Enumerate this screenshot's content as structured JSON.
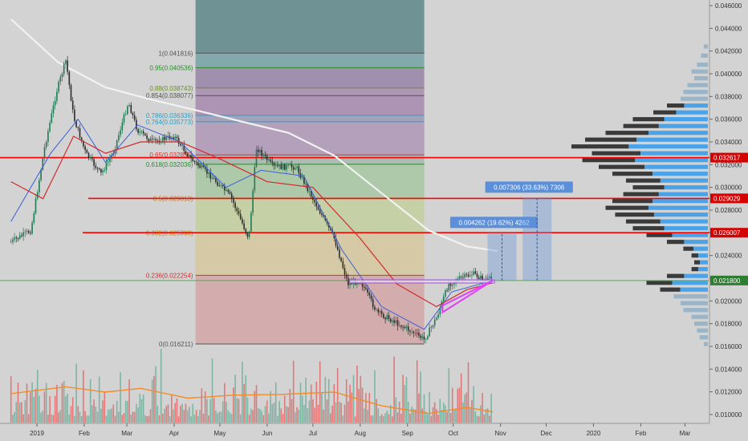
{
  "colors": {
    "background": "#d3d3d3",
    "candle_up": "#1f7a53",
    "candle_down": "#2c2c2c",
    "volume_up": "#7fb3a3",
    "volume_down": "#e07878",
    "volume_ma": "#f28c28",
    "ema_fast": "#3b5fd6",
    "ema_slow": "#d22b2b",
    "ma_long": "#f2f2f2",
    "resistance": "#ff0000",
    "current_price_line": "#4caf50",
    "price_badge": "#2e7d32",
    "red_badge": "#d50000",
    "measure_box": "#5b8fd9",
    "triangle": "#e040fb",
    "vp_value_area": "#4aa3e8",
    "vp_outside": "#3a3a3a",
    "vp_low": "#9ab4c8"
  },
  "chart_data": {
    "type": "candlestick",
    "title": "",
    "price_axis": {
      "range": [
        0.0093,
        0.047
      ],
      "ticks": [
        "0.046000",
        "0.044000",
        "0.042000",
        "0.040000",
        "0.038000",
        "0.036000",
        "0.034000",
        "0.032000",
        "0.030000",
        "0.028000",
        "0.026000",
        "0.024000",
        "0.022000",
        "0.020000",
        "0.018000",
        "0.016000",
        "0.014000",
        "0.012000",
        "0.010000"
      ]
    },
    "time_axis": {
      "labels": [
        "2019",
        "Feb",
        "Mar",
        "Apr",
        "May",
        "Jun",
        "Jul",
        "Aug",
        "Sep",
        "Oct",
        "Nov",
        "Dec",
        "2020",
        "Feb",
        "Mar"
      ]
    },
    "price_path": [
      {
        "date": "2018-12-15",
        "price": 0.0252
      },
      {
        "date": "2018-12-28",
        "price": 0.0262
      },
      {
        "date": "2019-01-06",
        "price": 0.0335
      },
      {
        "date": "2019-01-14",
        "price": 0.0385
      },
      {
        "date": "2019-01-20",
        "price": 0.0412
      },
      {
        "date": "2019-01-25",
        "price": 0.0362
      },
      {
        "date": "2019-02-02",
        "price": 0.033
      },
      {
        "date": "2019-02-12",
        "price": 0.0312
      },
      {
        "date": "2019-02-20",
        "price": 0.033
      },
      {
        "date": "2019-03-02",
        "price": 0.0375
      },
      {
        "date": "2019-03-08",
        "price": 0.035
      },
      {
        "date": "2019-03-18",
        "price": 0.034
      },
      {
        "date": "2019-04-01",
        "price": 0.0345
      },
      {
        "date": "2019-04-12",
        "price": 0.0325
      },
      {
        "date": "2019-04-25",
        "price": 0.031
      },
      {
        "date": "2019-05-08",
        "price": 0.0292
      },
      {
        "date": "2019-05-20",
        "price": 0.0255
      },
      {
        "date": "2019-05-25",
        "price": 0.0335
      },
      {
        "date": "2019-06-05",
        "price": 0.0318
      },
      {
        "date": "2019-06-20",
        "price": 0.0318
      },
      {
        "date": "2019-07-03",
        "price": 0.0285
      },
      {
        "date": "2019-07-15",
        "price": 0.0255
      },
      {
        "date": "2019-07-24",
        "price": 0.0215
      },
      {
        "date": "2019-08-01",
        "price": 0.0218
      },
      {
        "date": "2019-08-12",
        "price": 0.019
      },
      {
        "date": "2019-08-22",
        "price": 0.0183
      },
      {
        "date": "2019-09-05",
        "price": 0.0172
      },
      {
        "date": "2019-09-12",
        "price": 0.0166
      },
      {
        "date": "2019-09-20",
        "price": 0.0185
      },
      {
        "date": "2019-09-28",
        "price": 0.0215
      },
      {
        "date": "2019-10-06",
        "price": 0.022
      },
      {
        "date": "2019-10-14",
        "price": 0.0224
      },
      {
        "date": "2019-10-22",
        "price": 0.0218
      },
      {
        "date": "2019-10-27",
        "price": 0.022
      }
    ],
    "ma_long": [
      {
        "date": "2018-12-15",
        "price": 0.0448
      },
      {
        "date": "2019-01-15",
        "price": 0.041
      },
      {
        "date": "2019-02-15",
        "price": 0.0388
      },
      {
        "date": "2019-03-15",
        "price": 0.0378
      },
      {
        "date": "2019-04-15",
        "price": 0.0368
      },
      {
        "date": "2019-05-15",
        "price": 0.0358
      },
      {
        "date": "2019-06-15",
        "price": 0.0348
      },
      {
        "date": "2019-07-15",
        "price": 0.0328
      },
      {
        "date": "2019-08-15",
        "price": 0.0295
      },
      {
        "date": "2019-09-15",
        "price": 0.0262
      },
      {
        "date": "2019-10-10",
        "price": 0.0248
      },
      {
        "date": "2019-10-30",
        "price": 0.0244
      }
    ],
    "ema_slow": [
      {
        "date": "2018-12-15",
        "price": 0.0305
      },
      {
        "date": "2019-01-05",
        "price": 0.029
      },
      {
        "date": "2019-01-25",
        "price": 0.0345
      },
      {
        "date": "2019-02-15",
        "price": 0.033
      },
      {
        "date": "2019-03-10",
        "price": 0.034
      },
      {
        "date": "2019-04-05",
        "price": 0.034
      },
      {
        "date": "2019-05-01",
        "price": 0.0325
      },
      {
        "date": "2019-06-01",
        "price": 0.0305
      },
      {
        "date": "2019-07-01",
        "price": 0.03
      },
      {
        "date": "2019-08-01",
        "price": 0.0255
      },
      {
        "date": "2019-08-25",
        "price": 0.0215
      },
      {
        "date": "2019-09-20",
        "price": 0.0195
      },
      {
        "date": "2019-10-10",
        "price": 0.021
      },
      {
        "date": "2019-10-27",
        "price": 0.0216
      }
    ],
    "ema_fast": [
      {
        "date": "2018-12-15",
        "price": 0.027
      },
      {
        "date": "2019-01-10",
        "price": 0.033
      },
      {
        "date": "2019-01-28",
        "price": 0.036
      },
      {
        "date": "2019-02-15",
        "price": 0.0322
      },
      {
        "date": "2019-03-08",
        "price": 0.0355
      },
      {
        "date": "2019-04-05",
        "price": 0.034
      },
      {
        "date": "2019-05-05",
        "price": 0.03
      },
      {
        "date": "2019-05-28",
        "price": 0.0315
      },
      {
        "date": "2019-06-25",
        "price": 0.031
      },
      {
        "date": "2019-07-20",
        "price": 0.0245
      },
      {
        "date": "2019-08-15",
        "price": 0.0195
      },
      {
        "date": "2019-09-12",
        "price": 0.0175
      },
      {
        "date": "2019-09-30",
        "price": 0.0208
      },
      {
        "date": "2019-10-27",
        "price": 0.0218
      }
    ],
    "volume_ma": [
      {
        "date": "2018-12-15",
        "level": 0.38
      },
      {
        "date": "2019-01-20",
        "level": 0.47
      },
      {
        "date": "2019-02-15",
        "level": 0.4
      },
      {
        "date": "2019-03-10",
        "level": 0.45
      },
      {
        "date": "2019-04-10",
        "level": 0.32
      },
      {
        "date": "2019-05-10",
        "level": 0.36
      },
      {
        "date": "2019-06-10",
        "level": 0.37
      },
      {
        "date": "2019-07-15",
        "level": 0.4
      },
      {
        "date": "2019-08-15",
        "level": 0.22
      },
      {
        "date": "2019-09-15",
        "level": 0.12
      },
      {
        "date": "2019-10-10",
        "level": 0.2
      },
      {
        "date": "2019-10-27",
        "level": 0.14
      }
    ],
    "fibonacci": {
      "start": "2019-04-15",
      "end": "2019-09-12",
      "levels": [
        {
          "label": "1(0.041816)",
          "price": 0.041816,
          "color": "#555555"
        },
        {
          "label": "0.95(0.040536)",
          "price": 0.040536,
          "color": "#2e8b2e"
        },
        {
          "label": "0.88(0.038743)",
          "price": 0.038743,
          "color": "#6b8e23"
        },
        {
          "label": "0.854(0.038077)",
          "price": 0.038077,
          "color": "#555555"
        },
        {
          "label": "0.786(0.036336)",
          "price": 0.036336,
          "color": "#2aa0c8"
        },
        {
          "label": "0.764(0.035773)",
          "price": 0.035773,
          "color": "#2aa0c8"
        },
        {
          "label": "0.65(0.032855)",
          "price": 0.032855,
          "color": "#cc3333"
        },
        {
          "label": "0.618(0.032036)",
          "price": 0.032036,
          "color": "#2e8b2e"
        },
        {
          "label": "0.5(0.029013)",
          "price": 0.029013,
          "color": "#b8860b"
        },
        {
          "label": "0.382(0.025990)",
          "price": 0.02599,
          "color": "#b8860b"
        },
        {
          "label": "0.236(0.022254)",
          "price": 0.022254,
          "color": "#cc3333"
        },
        {
          "label": "0(0.016211)",
          "price": 0.016211,
          "color": "#555555"
        }
      ]
    },
    "horizontal_lines": [
      {
        "price": 0.032617,
        "label": "0.032617"
      },
      {
        "price": 0.029029,
        "label": "0.029029"
      },
      {
        "price": 0.026007,
        "label": "0.026007"
      }
    ],
    "current_price": {
      "price": 0.0218,
      "label": "0.021800"
    },
    "consolidation_box": {
      "start": "2019-07-25",
      "end": "2019-10-28",
      "low": 0.02158,
      "high": 0.02186
    },
    "triangle": [
      {
        "date": "2019-09-24",
        "price": 0.019
      },
      {
        "date": "2019-10-27",
        "price": 0.0218
      },
      {
        "date": "2019-09-24",
        "price": 0.0196
      }
    ],
    "measurements": [
      {
        "date": "2019-11-02",
        "from": 0.0218,
        "to": 0.026,
        "label": "0.004262 (19.62%) 4262"
      },
      {
        "date": "2019-11-25",
        "from": 0.0218,
        "to": 0.0291,
        "label": "0.007306 (33.63%) 7306"
      }
    ],
    "volume_profile": {
      "value_area": [
        0.0208,
        0.0372
      ],
      "rows": [
        {
          "price": 0.0424,
          "w": 0.03
        },
        {
          "price": 0.0416,
          "w": 0.05
        },
        {
          "price": 0.0408,
          "w": 0.08
        },
        {
          "price": 0.0402,
          "w": 0.12
        },
        {
          "price": 0.0396,
          "w": 0.1
        },
        {
          "price": 0.039,
          "w": 0.15
        },
        {
          "price": 0.0384,
          "w": 0.18
        },
        {
          "price": 0.0378,
          "w": 0.2
        },
        {
          "price": 0.0372,
          "w": 0.3
        },
        {
          "price": 0.0366,
          "w": 0.4
        },
        {
          "price": 0.036,
          "w": 0.55
        },
        {
          "price": 0.0354,
          "w": 0.62
        },
        {
          "price": 0.0348,
          "w": 0.75
        },
        {
          "price": 0.0342,
          "w": 0.9
        },
        {
          "price": 0.0336,
          "w": 1.0
        },
        {
          "price": 0.033,
          "w": 0.85
        },
        {
          "price": 0.0324,
          "w": 0.92
        },
        {
          "price": 0.0318,
          "w": 0.8
        },
        {
          "price": 0.0312,
          "w": 0.7
        },
        {
          "price": 0.0306,
          "w": 0.6
        },
        {
          "price": 0.03,
          "w": 0.55
        },
        {
          "price": 0.0294,
          "w": 0.62
        },
        {
          "price": 0.0288,
          "w": 0.7
        },
        {
          "price": 0.0282,
          "w": 0.75
        },
        {
          "price": 0.0276,
          "w": 0.68
        },
        {
          "price": 0.027,
          "w": 0.6
        },
        {
          "price": 0.0264,
          "w": 0.55
        },
        {
          "price": 0.0258,
          "w": 0.45
        },
        {
          "price": 0.0252,
          "w": 0.3
        },
        {
          "price": 0.0246,
          "w": 0.18
        },
        {
          "price": 0.024,
          "w": 0.12
        },
        {
          "price": 0.0234,
          "w": 0.1
        },
        {
          "price": 0.0228,
          "w": 0.12
        },
        {
          "price": 0.0222,
          "w": 0.3
        },
        {
          "price": 0.0216,
          "w": 0.45
        },
        {
          "price": 0.021,
          "w": 0.35
        },
        {
          "price": 0.0204,
          "w": 0.25
        },
        {
          "price": 0.0198,
          "w": 0.2
        },
        {
          "price": 0.0192,
          "w": 0.18
        },
        {
          "price": 0.0186,
          "w": 0.12
        },
        {
          "price": 0.018,
          "w": 0.1
        },
        {
          "price": 0.0174,
          "w": 0.08
        },
        {
          "price": 0.0168,
          "w": 0.06
        },
        {
          "price": 0.0162,
          "w": 0.03
        }
      ]
    }
  }
}
